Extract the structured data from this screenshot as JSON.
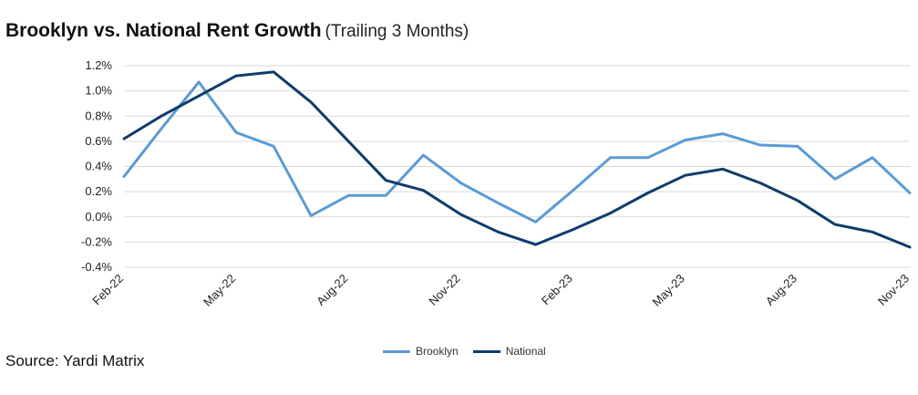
{
  "title": "Brooklyn vs. National Rent Growth",
  "subtitle": "(Trailing 3 Months)",
  "source": "Source: Yardi Matrix",
  "chart_data": {
    "type": "line",
    "x": [
      "Feb-22",
      "Mar-22",
      "Apr-22",
      "May-22",
      "Jun-22",
      "Jul-22",
      "Aug-22",
      "Sep-22",
      "Oct-22",
      "Nov-22",
      "Dec-22",
      "Jan-23",
      "Feb-23",
      "Mar-23",
      "Apr-23",
      "May-23",
      "Jun-23",
      "Jul-23",
      "Aug-23",
      "Sep-23",
      "Oct-23",
      "Nov-23"
    ],
    "x_tick_labels": [
      "Feb-22",
      "May-22",
      "Aug-22",
      "Nov-22",
      "Feb-23",
      "May-23",
      "Aug-23",
      "Nov-23"
    ],
    "y_tick_labels": [
      "-0.4%",
      "-0.2%",
      "0.0%",
      "0.2%",
      "0.4%",
      "0.6%",
      "0.8%",
      "1.0%",
      "1.2%"
    ],
    "ylim": [
      -0.4,
      1.2
    ],
    "ystep": 0.2,
    "y_unit": "%",
    "grid": "horizontal",
    "legend_position": "bottom",
    "series": [
      {
        "name": "Brooklyn",
        "color": "#5b9bd5",
        "values": [
          0.32,
          0.7,
          1.07,
          0.67,
          0.56,
          0.01,
          0.17,
          0.17,
          0.49,
          0.27,
          0.11,
          -0.04,
          0.21,
          0.47,
          0.47,
          0.61,
          0.66,
          0.57,
          0.56,
          0.3,
          0.47,
          0.19
        ]
      },
      {
        "name": "National",
        "color": "#0e3d6b",
        "values": [
          0.62,
          0.8,
          0.96,
          1.12,
          1.15,
          0.91,
          0.6,
          0.29,
          0.21,
          0.02,
          -0.12,
          -0.22,
          -0.1,
          0.03,
          0.19,
          0.33,
          0.38,
          0.27,
          0.13,
          -0.06,
          -0.12,
          -0.24
        ]
      }
    ]
  }
}
